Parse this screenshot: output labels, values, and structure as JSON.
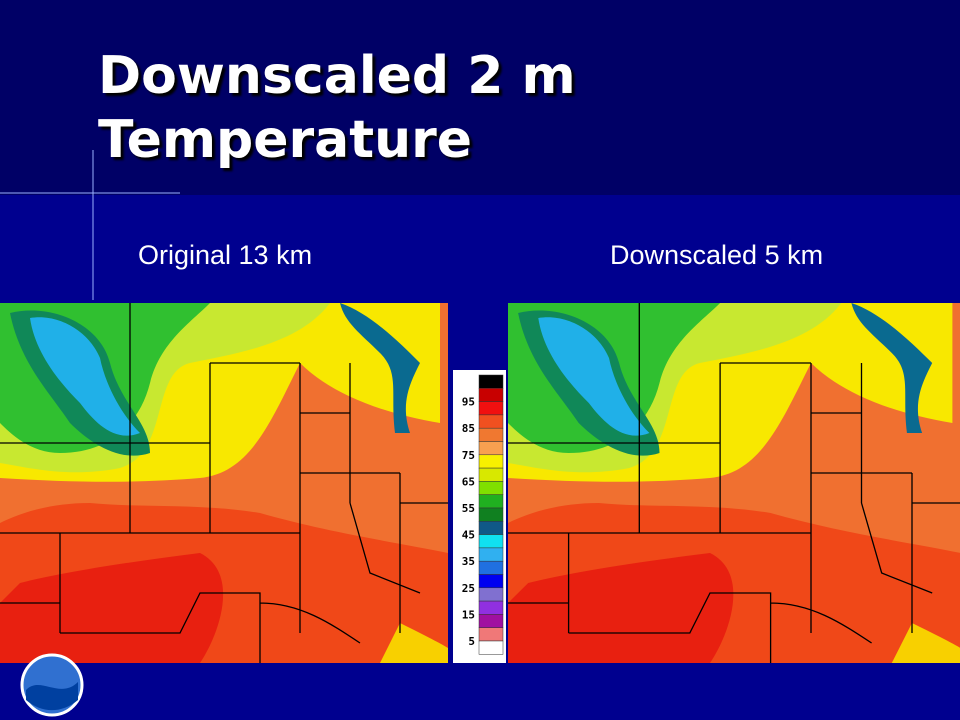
{
  "title": "Downscaled 2 m Temperature",
  "panels": [
    {
      "label": "Original 13 km"
    },
    {
      "label": "Downscaled 5 km"
    }
  ],
  "colorbar": {
    "labels": [
      "95",
      "85",
      "75",
      "65",
      "55",
      "45",
      "35",
      "25",
      "15",
      "5"
    ],
    "colors": [
      "#000000",
      "#c80000",
      "#f01010",
      "#f05020",
      "#f07830",
      "#f8a050",
      "#f8f000",
      "#d8e800",
      "#80e000",
      "#20b020",
      "#108020",
      "#105888",
      "#10e0f0",
      "#30b0f0",
      "#2070e0",
      "#0000f0",
      "#8070d0",
      "#9030e0",
      "#a010a0",
      "#f07878",
      "#ffffff"
    ]
  }
}
